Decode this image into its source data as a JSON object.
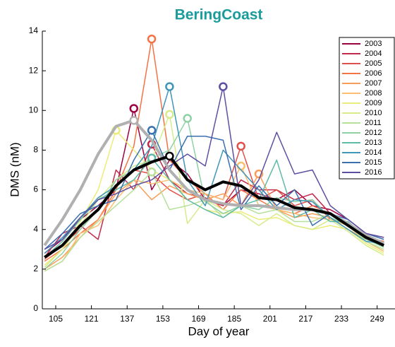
{
  "chart_data": {
    "type": "line",
    "title": "BeringCoast",
    "title_color": "#1a9c9c",
    "x_label": "Day of year",
    "y_label": "DMS (nM)",
    "x": [
      100,
      108,
      116,
      124,
      132,
      140,
      148,
      156,
      164,
      172,
      180,
      188,
      196,
      204,
      212,
      220,
      228,
      236,
      244,
      252
    ],
    "xlim": [
      99,
      257
    ],
    "xticks": [
      105,
      121,
      137,
      153,
      169,
      185,
      201,
      217,
      233,
      249
    ],
    "ylim": [
      0,
      14
    ],
    "yticks": [
      0,
      2,
      4,
      6,
      8,
      10,
      12,
      14
    ],
    "legend": "upper right",
    "peak_markers": true,
    "series": [
      {
        "name": "2003",
        "color": "#9e0142",
        "values": [
          2.8,
          3.5,
          4.5,
          5.2,
          6,
          10.1,
          6,
          7.5,
          6.8,
          5.5,
          5.2,
          6,
          5.8,
          5.5,
          6,
          5.2,
          5,
          4.5,
          3.8,
          3.6
        ]
      },
      {
        "name": "2004",
        "color": "#c2294a",
        "values": [
          2.6,
          3.8,
          4.2,
          3.5,
          7,
          6,
          8.3,
          6.5,
          5.8,
          5.6,
          5.2,
          6.5,
          6,
          6,
          5.5,
          5.8,
          4.8,
          4.2,
          3.6,
          3.4
        ]
      },
      {
        "name": "2005",
        "color": "#e1504a",
        "values": [
          2.5,
          3.2,
          4,
          5,
          6.5,
          7,
          6.8,
          6,
          5.5,
          5.8,
          5.5,
          8.2,
          5.5,
          6,
          5.2,
          5.5,
          4.5,
          4.3,
          3.6,
          3.2
        ]
      },
      {
        "name": "2006",
        "color": "#f57245",
        "values": [
          2.4,
          3,
          3.8,
          4.5,
          6,
          8.2,
          13.6,
          7.5,
          6.5,
          5.8,
          5,
          6,
          5.5,
          5,
          4.8,
          5.2,
          4.8,
          4.3,
          3.6,
          3.4
        ]
      },
      {
        "name": "2007",
        "color": "#fb9d59",
        "values": [
          2,
          2.6,
          3.6,
          4.5,
          5.8,
          6.5,
          5.5,
          6.2,
          5.8,
          5.5,
          5.8,
          5.2,
          6.8,
          5,
          4.6,
          4.8,
          4.6,
          4,
          3.5,
          3.2
        ]
      },
      {
        "name": "2008",
        "color": "#fdbf6f",
        "values": [
          1.9,
          2.4,
          3.8,
          4.2,
          5.5,
          6.5,
          6.3,
          6.5,
          6,
          5.8,
          5.5,
          7.2,
          5.2,
          5,
          4.8,
          4.6,
          4.5,
          4.2,
          3.4,
          2.9
        ]
      },
      {
        "name": "2009",
        "color": "#ecec7a",
        "values": [
          2.2,
          3,
          4.4,
          6,
          9,
          8,
          7,
          6.5,
          5.5,
          5,
          4.8,
          4.9,
          4.5,
          4.6,
          4.2,
          4,
          4.2,
          4,
          3.3,
          2.8
        ]
      },
      {
        "name": "2010",
        "color": "#d6ec8a",
        "values": [
          2.1,
          3,
          4.2,
          5.5,
          6.5,
          7.2,
          7.5,
          9.8,
          4.3,
          5.5,
          5,
          4.8,
          4.2,
          4.8,
          4.2,
          4,
          4.5,
          3.9,
          3.2,
          2.7
        ]
      },
      {
        "name": "2011",
        "color": "#b7e09a",
        "values": [
          1.9,
          2.4,
          3.6,
          4.4,
          5.2,
          6,
          6.9,
          5,
          5.2,
          5.5,
          4.6,
          5.2,
          4.8,
          5,
          4.4,
          4.4,
          4.8,
          4.2,
          3.4,
          3
        ]
      },
      {
        "name": "2012",
        "color": "#8ed1a4",
        "values": [
          2,
          2.8,
          4,
          5,
          6.5,
          7,
          7.6,
          8,
          9.6,
          5.4,
          4.8,
          5.2,
          5,
          5.6,
          5.4,
          5.5,
          4.6,
          4.2,
          3.5,
          3.1
        ]
      },
      {
        "name": "2013",
        "color": "#5fbaa8",
        "values": [
          2.6,
          3.4,
          4.5,
          5.5,
          6,
          6.5,
          7.6,
          6.5,
          5.5,
          5,
          4.6,
          5.2,
          5.5,
          7.5,
          4.6,
          5,
          4.4,
          4.4,
          3.6,
          3.3
        ]
      },
      {
        "name": "2014",
        "color": "#3f96b8",
        "values": [
          2.8,
          3.6,
          4.6,
          5.6,
          6.2,
          7,
          8.2,
          11.2,
          6.5,
          5.2,
          8,
          7,
          6,
          5,
          5.5,
          5.4,
          4.6,
          4,
          3.4,
          3.3
        ]
      },
      {
        "name": "2015",
        "color": "#3a6fb0",
        "values": [
          3,
          3.8,
          4.8,
          5.2,
          5.5,
          7.5,
          9,
          7,
          8.7,
          8.7,
          8.5,
          5,
          6.2,
          5.2,
          6,
          4.2,
          4.8,
          4.5,
          3.8,
          3.5
        ]
      },
      {
        "name": "2016",
        "color": "#5e4fa2",
        "values": [
          3,
          3.5,
          4.6,
          5.5,
          5.8,
          6.2,
          6.5,
          7.2,
          7.8,
          7.2,
          11.2,
          5.2,
          6.5,
          8.9,
          6.8,
          7,
          5.2,
          4.5,
          3.8,
          3.6
        ]
      }
    ],
    "reference_lines": [
      {
        "color": "#b0b0b0",
        "values": [
          3.2,
          4.5,
          6,
          7.8,
          9.2,
          9.5,
          8.5,
          7,
          6,
          5.5,
          5.3,
          5.2,
          5.2,
          5.1,
          5,
          5,
          4.8,
          4.3,
          3.7,
          3.3
        ]
      },
      {
        "color": "#000000",
        "values": [
          2.6,
          3.2,
          4.2,
          5,
          6.2,
          7,
          7.4,
          7.7,
          6.5,
          6,
          6.4,
          6.2,
          5.6,
          5.5,
          5.1,
          5,
          4.8,
          4.2,
          3.6,
          3.2
        ]
      }
    ]
  }
}
